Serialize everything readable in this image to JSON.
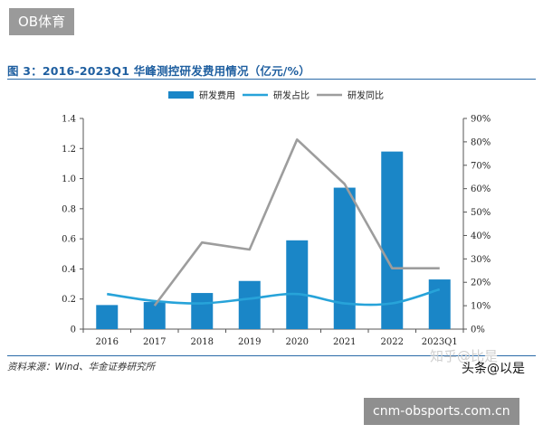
{
  "top_badge": "OB体育",
  "bottom_badge": "cnm-obsports.com.cn",
  "watermark_1": "知乎@比是",
  "watermark_2": "头条@以是",
  "source": "资料来源：Wind、华金证券研究所",
  "colors": {
    "bar": "#1a86c7",
    "ratio_line": "#27a3d9",
    "yoy_line": "#9d9d9d",
    "title": "#1f5fa0",
    "rule": "#2a6aa8"
  },
  "chart_data": {
    "type": "bar",
    "title": "图 3：2016-2023Q1 华峰测控研发费用情况（亿元/%）",
    "categories": [
      "2016",
      "2017",
      "2018",
      "2019",
      "2020",
      "2021",
      "2022",
      "2023Q1"
    ],
    "left_axis": {
      "min": 0,
      "max": 1.4,
      "ticks": [
        "0",
        "0.2",
        "0.4",
        "0.6",
        "0.8",
        "1.0",
        "1.2",
        "1.4"
      ]
    },
    "right_axis": {
      "min": 0,
      "max": 90,
      "ticks": [
        "0%",
        "10%",
        "20%",
        "30%",
        "40%",
        "50%",
        "60%",
        "70%",
        "80%",
        "90%"
      ]
    },
    "grid": false,
    "legend_position": "top",
    "series": [
      {
        "name": "研发费用",
        "kind": "bar",
        "axis": "left",
        "values": [
          0.16,
          0.18,
          0.24,
          0.32,
          0.59,
          0.94,
          1.18,
          0.33
        ]
      },
      {
        "name": "研发占比",
        "kind": "line",
        "axis": "right",
        "values": [
          15,
          12,
          11,
          13,
          15,
          11,
          11,
          17
        ]
      },
      {
        "name": "研发同比",
        "kind": "line",
        "axis": "right",
        "values": [
          null,
          10,
          37,
          34,
          81,
          62,
          26,
          26
        ]
      }
    ]
  }
}
